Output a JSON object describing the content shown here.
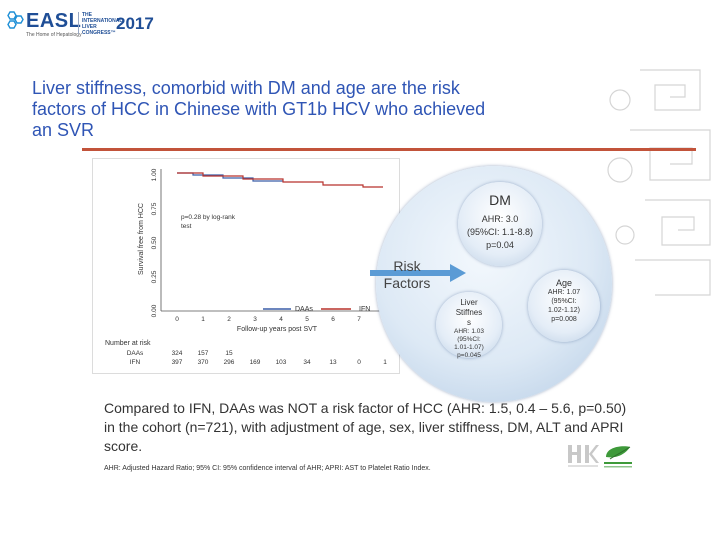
{
  "header": {
    "logo_main": "EASL",
    "logo_tagline": "The Home of Hepatology",
    "logo_congress": "THE INTERNATIONAL LIVER CONGRESS™",
    "logo_year": "2017"
  },
  "slide": {
    "title": "Liver stiffness, comorbid with DM and age are the risk factors of HCC in Chinese with GT1b HCV who achieved an SVR"
  },
  "km_plot": {
    "ylabel": "Survival free from HCC",
    "y_ticks": [
      "0.00",
      "0.25",
      "0.50",
      "0.75",
      "1.00"
    ],
    "x_ticks": [
      "0",
      "1",
      "2",
      "3",
      "4",
      "5",
      "6",
      "7",
      "8"
    ],
    "xlabel": "Follow-up years post SVT",
    "annotation_line1": "p=0.28 by log-rank",
    "annotation_line2": "test",
    "legend": [
      "DAAs",
      "IFN"
    ],
    "at_risk_title": "Number at risk",
    "at_risk_rows": [
      {
        "label": "DAAs",
        "values": [
          "324",
          "157",
          "15",
          "",
          "",
          "",
          "",
          "",
          ""
        ]
      },
      {
        "label": "IFN",
        "values": [
          "397",
          "370",
          "296",
          "169",
          "103",
          "34",
          "13",
          "0",
          "1"
        ]
      }
    ]
  },
  "risk_diagram": {
    "center_label_line1": "Risk",
    "center_label_line2": "Factors",
    "dm": {
      "name": "DM",
      "line1": "AHR: 3.0",
      "line2": "(95%CI: 1.1-8.8)",
      "line3": "p=0.04"
    },
    "age": {
      "name": "Age",
      "line1": "AHR: 1.07",
      "line2": "(95%CI:",
      "line3": "1.02-1.12)",
      "line4": "p=0.008"
    },
    "liver": {
      "name_line1": "Liver",
      "name_line2": "Stiffnes",
      "name_line3": "s",
      "line1": "AHR: 1.03",
      "line2": "(95%CI:",
      "line3": "1.01-1.07)",
      "line4": "p=0.045"
    }
  },
  "summary": "Compared to IFN, DAAs was NOT a risk factor of HCC (AHR: 1.5, 0.4 – 5.6, p=0.50) in the cohort (n=721), with adjustment of age, sex, liver stiffness, DM, ALT and APRI score.",
  "footnote": "AHR: Adjusted Hazard Ratio; 95% CI: 95% confidence interval of AHR; APRI: AST to Platelet Ratio Index.",
  "colors": {
    "title": "#2f55b5",
    "rule": "#c2533a",
    "daa_line": "#3b5ea8",
    "ifn_line": "#b8322c",
    "arrow": "#5b9bd5"
  }
}
